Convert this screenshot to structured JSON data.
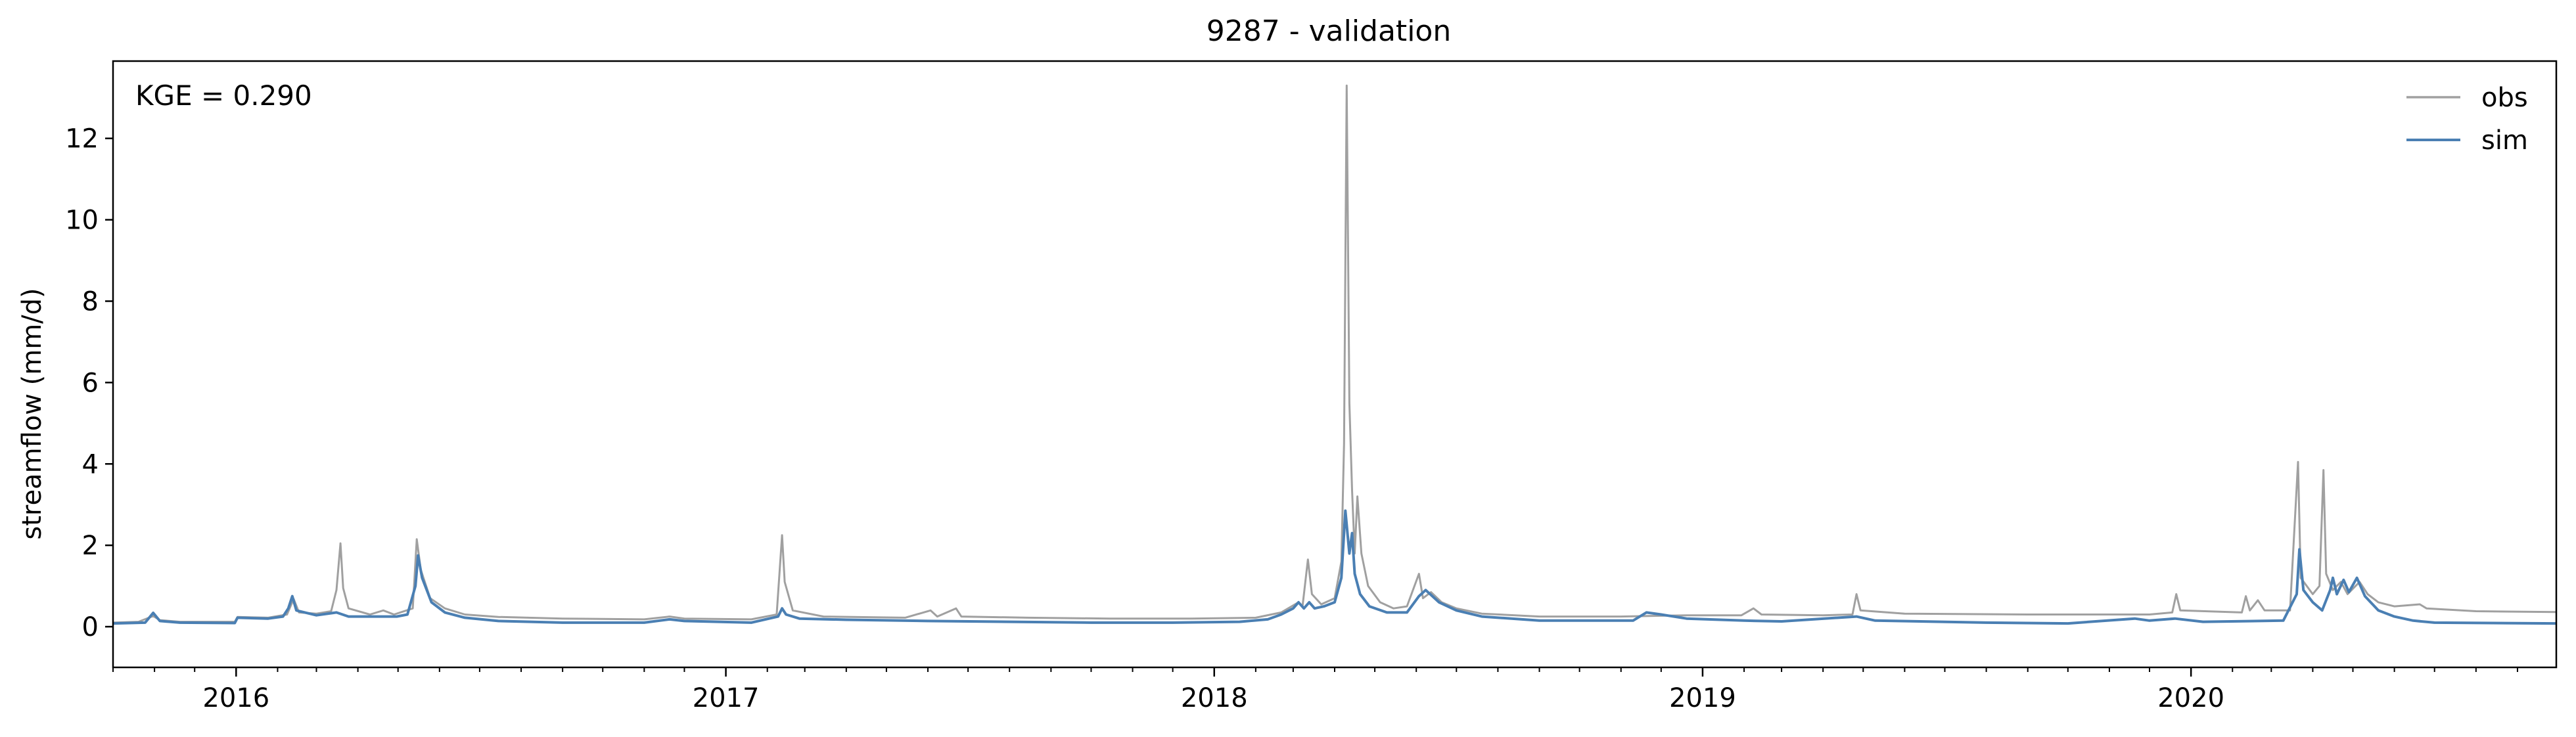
{
  "chart_data": {
    "type": "line",
    "title": "9287 - validation",
    "xlabel": "",
    "ylabel": "streamflow (mm/d)",
    "annotation": "KGE = 0.290",
    "xlim": [
      "2015-10-01",
      "2020-09-30"
    ],
    "ylim": [
      -1,
      13.9
    ],
    "x_ticks": [
      {
        "date": "2016-01-01",
        "label": "2016"
      },
      {
        "date": "2017-01-01",
        "label": "2017"
      },
      {
        "date": "2018-01-01",
        "label": "2018"
      },
      {
        "date": "2019-01-01",
        "label": "2019"
      },
      {
        "date": "2020-01-01",
        "label": "2020"
      }
    ],
    "y_ticks": [
      {
        "value": 0,
        "label": "0"
      },
      {
        "value": 2,
        "label": "2"
      },
      {
        "value": 4,
        "label": "4"
      },
      {
        "value": 6,
        "label": "6"
      },
      {
        "value": 8,
        "label": "8"
      },
      {
        "value": 10,
        "label": "10"
      },
      {
        "value": 12,
        "label": "12"
      }
    ],
    "grid": false,
    "legend_position": "top-right",
    "series": [
      {
        "name": "obs",
        "color": "#a0a0a0",
        "points": [
          [
            "2015-10-01",
            0.1
          ],
          [
            "2015-10-20",
            0.12
          ],
          [
            "2015-10-31",
            0.26
          ],
          [
            "2015-11-05",
            0.16
          ],
          [
            "2015-11-20",
            0.12
          ],
          [
            "2015-12-31",
            0.12
          ],
          [
            "2016-01-02",
            0.24
          ],
          [
            "2016-01-25",
            0.22
          ],
          [
            "2016-02-08",
            0.3
          ],
          [
            "2016-02-13",
            0.68
          ],
          [
            "2016-02-17",
            0.35
          ],
          [
            "2016-03-01",
            0.32
          ],
          [
            "2016-03-12",
            0.38
          ],
          [
            "2016-03-16",
            0.9
          ],
          [
            "2016-03-19",
            2.05
          ],
          [
            "2016-03-21",
            0.95
          ],
          [
            "2016-03-25",
            0.45
          ],
          [
            "2016-04-10",
            0.3
          ],
          [
            "2016-04-20",
            0.4
          ],
          [
            "2016-04-28",
            0.3
          ],
          [
            "2016-05-12",
            0.45
          ],
          [
            "2016-05-15",
            2.15
          ],
          [
            "2016-05-18",
            1.4
          ],
          [
            "2016-05-25",
            0.7
          ],
          [
            "2016-06-05",
            0.45
          ],
          [
            "2016-06-20",
            0.3
          ],
          [
            "2016-07-15",
            0.24
          ],
          [
            "2016-09-01",
            0.2
          ],
          [
            "2016-11-01",
            0.18
          ],
          [
            "2016-11-20",
            0.25
          ],
          [
            "2016-12-01",
            0.2
          ],
          [
            "2017-01-20",
            0.18
          ],
          [
            "2017-02-08",
            0.3
          ],
          [
            "2017-02-12",
            2.25
          ],
          [
            "2017-02-14",
            1.1
          ],
          [
            "2017-02-20",
            0.4
          ],
          [
            "2017-03-15",
            0.25
          ],
          [
            "2017-05-15",
            0.22
          ],
          [
            "2017-06-03",
            0.4
          ],
          [
            "2017-06-08",
            0.25
          ],
          [
            "2017-06-22",
            0.45
          ],
          [
            "2017-06-26",
            0.25
          ],
          [
            "2017-08-15",
            0.22
          ],
          [
            "2017-10-15",
            0.2
          ],
          [
            "2017-12-15",
            0.2
          ],
          [
            "2018-02-01",
            0.22
          ],
          [
            "2018-02-20",
            0.35
          ],
          [
            "2018-03-05",
            0.6
          ],
          [
            "2018-03-08",
            0.5
          ],
          [
            "2018-03-12",
            1.65
          ],
          [
            "2018-03-15",
            0.8
          ],
          [
            "2018-03-22",
            0.55
          ],
          [
            "2018-04-01",
            0.7
          ],
          [
            "2018-04-06",
            1.6
          ],
          [
            "2018-04-08",
            4.5
          ],
          [
            "2018-04-10",
            13.3
          ],
          [
            "2018-04-12",
            5.5
          ],
          [
            "2018-04-14",
            3.35
          ],
          [
            "2018-04-16",
            1.8
          ],
          [
            "2018-04-18",
            3.2
          ],
          [
            "2018-04-21",
            1.8
          ],
          [
            "2018-04-26",
            1.0
          ],
          [
            "2018-05-05",
            0.6
          ],
          [
            "2018-05-15",
            0.45
          ],
          [
            "2018-05-25",
            0.5
          ],
          [
            "2018-06-03",
            1.3
          ],
          [
            "2018-06-06",
            0.7
          ],
          [
            "2018-06-12",
            0.85
          ],
          [
            "2018-06-20",
            0.6
          ],
          [
            "2018-07-01",
            0.45
          ],
          [
            "2018-07-20",
            0.32
          ],
          [
            "2018-09-01",
            0.25
          ],
          [
            "2018-11-01",
            0.25
          ],
          [
            "2018-12-20",
            0.28
          ],
          [
            "2019-01-30",
            0.28
          ],
          [
            "2019-02-08",
            0.45
          ],
          [
            "2019-02-14",
            0.3
          ],
          [
            "2019-04-01",
            0.28
          ],
          [
            "2019-04-23",
            0.3
          ],
          [
            "2019-04-26",
            0.8
          ],
          [
            "2019-04-29",
            0.4
          ],
          [
            "2019-06-01",
            0.32
          ],
          [
            "2019-09-01",
            0.3
          ],
          [
            "2019-12-01",
            0.3
          ],
          [
            "2019-12-18",
            0.35
          ],
          [
            "2019-12-21",
            0.8
          ],
          [
            "2019-12-24",
            0.4
          ],
          [
            "2020-02-08",
            0.35
          ],
          [
            "2020-02-11",
            0.75
          ],
          [
            "2020-02-14",
            0.4
          ],
          [
            "2020-02-20",
            0.65
          ],
          [
            "2020-02-25",
            0.4
          ],
          [
            "2020-03-15",
            0.4
          ],
          [
            "2020-03-21",
            4.05
          ],
          [
            "2020-03-23",
            1.2
          ],
          [
            "2020-04-01",
            0.8
          ],
          [
            "2020-04-06",
            1.0
          ],
          [
            "2020-04-09",
            3.85
          ],
          [
            "2020-04-11",
            1.3
          ],
          [
            "2020-04-16",
            0.9
          ],
          [
            "2020-04-22",
            1.1
          ],
          [
            "2020-04-27",
            0.8
          ],
          [
            "2020-05-06",
            1.1
          ],
          [
            "2020-05-12",
            0.8
          ],
          [
            "2020-05-20",
            0.6
          ],
          [
            "2020-06-01",
            0.5
          ],
          [
            "2020-06-20",
            0.55
          ],
          [
            "2020-06-25",
            0.45
          ],
          [
            "2020-08-01",
            0.38
          ],
          [
            "2020-09-30",
            0.36
          ]
        ]
      },
      {
        "name": "sim",
        "color": "#4a7fb3",
        "points": [
          [
            "2015-10-01",
            0.08
          ],
          [
            "2015-10-25",
            0.1
          ],
          [
            "2015-10-31",
            0.34
          ],
          [
            "2015-11-05",
            0.14
          ],
          [
            "2015-11-20",
            0.1
          ],
          [
            "2015-12-31",
            0.09
          ],
          [
            "2016-01-02",
            0.22
          ],
          [
            "2016-01-25",
            0.2
          ],
          [
            "2016-02-05",
            0.25
          ],
          [
            "2016-02-09",
            0.45
          ],
          [
            "2016-02-12",
            0.75
          ],
          [
            "2016-02-15",
            0.4
          ],
          [
            "2016-03-01",
            0.28
          ],
          [
            "2016-03-16",
            0.35
          ],
          [
            "2016-03-25",
            0.25
          ],
          [
            "2016-04-15",
            0.25
          ],
          [
            "2016-04-30",
            0.25
          ],
          [
            "2016-05-08",
            0.3
          ],
          [
            "2016-05-14",
            1.0
          ],
          [
            "2016-05-16",
            1.75
          ],
          [
            "2016-05-19",
            1.2
          ],
          [
            "2016-05-26",
            0.6
          ],
          [
            "2016-06-05",
            0.35
          ],
          [
            "2016-06-20",
            0.22
          ],
          [
            "2016-07-15",
            0.14
          ],
          [
            "2016-09-01",
            0.1
          ],
          [
            "2016-11-01",
            0.1
          ],
          [
            "2016-11-20",
            0.18
          ],
          [
            "2016-12-01",
            0.14
          ],
          [
            "2017-01-20",
            0.1
          ],
          [
            "2017-02-09",
            0.25
          ],
          [
            "2017-02-12",
            0.45
          ],
          [
            "2017-02-15",
            0.3
          ],
          [
            "2017-02-25",
            0.2
          ],
          [
            "2017-04-01",
            0.17
          ],
          [
            "2017-06-01",
            0.14
          ],
          [
            "2017-08-01",
            0.12
          ],
          [
            "2017-10-01",
            0.1
          ],
          [
            "2017-12-01",
            0.1
          ],
          [
            "2018-01-20",
            0.12
          ],
          [
            "2018-02-10",
            0.18
          ],
          [
            "2018-02-20",
            0.3
          ],
          [
            "2018-03-01",
            0.45
          ],
          [
            "2018-03-05",
            0.6
          ],
          [
            "2018-03-09",
            0.45
          ],
          [
            "2018-03-13",
            0.6
          ],
          [
            "2018-03-17",
            0.45
          ],
          [
            "2018-03-24",
            0.5
          ],
          [
            "2018-04-01",
            0.6
          ],
          [
            "2018-04-06",
            1.2
          ],
          [
            "2018-04-09",
            2.85
          ],
          [
            "2018-04-12",
            1.8
          ],
          [
            "2018-04-14",
            2.3
          ],
          [
            "2018-04-16",
            1.3
          ],
          [
            "2018-04-20",
            0.8
          ],
          [
            "2018-04-27",
            0.5
          ],
          [
            "2018-05-10",
            0.35
          ],
          [
            "2018-05-25",
            0.35
          ],
          [
            "2018-06-03",
            0.75
          ],
          [
            "2018-06-08",
            0.9
          ],
          [
            "2018-06-18",
            0.6
          ],
          [
            "2018-07-01",
            0.4
          ],
          [
            "2018-07-20",
            0.25
          ],
          [
            "2018-09-01",
            0.15
          ],
          [
            "2018-11-10",
            0.15
          ],
          [
            "2018-11-20",
            0.35
          ],
          [
            "2018-12-01",
            0.3
          ],
          [
            "2018-12-20",
            0.2
          ],
          [
            "2019-02-01",
            0.15
          ],
          [
            "2019-03-01",
            0.13
          ],
          [
            "2019-04-26",
            0.25
          ],
          [
            "2019-05-10",
            0.15
          ],
          [
            "2019-08-01",
            0.1
          ],
          [
            "2019-10-01",
            0.08
          ],
          [
            "2019-11-20",
            0.2
          ],
          [
            "2019-12-01",
            0.15
          ],
          [
            "2019-12-20",
            0.2
          ],
          [
            "2020-01-10",
            0.12
          ],
          [
            "2020-03-10",
            0.15
          ],
          [
            "2020-03-20",
            0.8
          ],
          [
            "2020-03-22",
            1.9
          ],
          [
            "2020-03-25",
            0.9
          ],
          [
            "2020-04-01",
            0.6
          ],
          [
            "2020-04-08",
            0.4
          ],
          [
            "2020-04-14",
            0.9
          ],
          [
            "2020-04-16",
            1.2
          ],
          [
            "2020-04-19",
            0.8
          ],
          [
            "2020-04-24",
            1.15
          ],
          [
            "2020-04-28",
            0.85
          ],
          [
            "2020-05-04",
            1.2
          ],
          [
            "2020-05-10",
            0.75
          ],
          [
            "2020-05-20",
            0.4
          ],
          [
            "2020-06-01",
            0.25
          ],
          [
            "2020-06-15",
            0.15
          ],
          [
            "2020-07-01",
            0.1
          ],
          [
            "2020-09-30",
            0.08
          ]
        ]
      }
    ]
  }
}
